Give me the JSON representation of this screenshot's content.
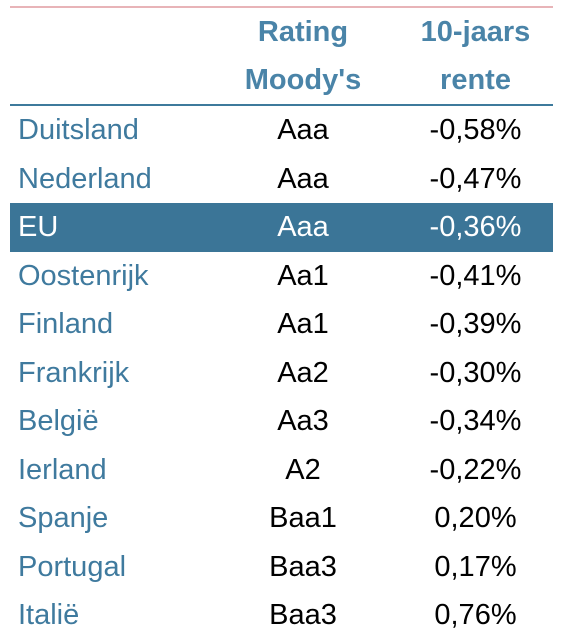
{
  "header": {
    "rating_line1": "Rating",
    "rating_line2": "Moody's",
    "rate_line1": "10-jaars",
    "rate_line2": "rente"
  },
  "rows": [
    {
      "country": "Duitsland",
      "rating": "Aaa",
      "rate": "-0,58%"
    },
    {
      "country": "Nederland",
      "rating": "Aaa",
      "rate": "-0,47%"
    },
    {
      "country": "EU",
      "rating": "Aaa",
      "rate": "-0,36%",
      "highlight": true
    },
    {
      "country": "Oostenrijk",
      "rating": "Aa1",
      "rate": "-0,41%"
    },
    {
      "country": "Finland",
      "rating": "Aa1",
      "rate": "-0,39%"
    },
    {
      "country": "Frankrijk",
      "rating": "Aa2",
      "rate": "-0,30%"
    },
    {
      "country": "België",
      "rating": "Aa3",
      "rate": "-0,34%"
    },
    {
      "country": "Ierland",
      "rating": "A2",
      "rate": "-0,22%"
    },
    {
      "country": "Spanje",
      "rating": "Baa1",
      "rate": "0,20%"
    },
    {
      "country": "Portugal",
      "rating": "Baa3",
      "rate": "0,17%"
    },
    {
      "country": "Italië",
      "rating": "Baa3",
      "rate": "0,76%"
    }
  ],
  "colors": {
    "header_text": "#4a84a8",
    "country_text": "#3f7a9e",
    "highlight_bg": "#3b7597",
    "highlight_text": "#ffffff",
    "top_rule": "#e8b4b8"
  }
}
